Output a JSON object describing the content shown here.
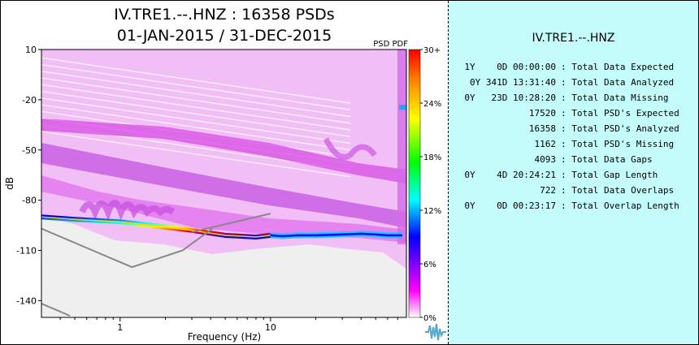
{
  "header": {
    "title_line1": "IV.TRE1.--.HNZ : 16358 PSDs",
    "title_line2": "01-JAN-2015 / 31-DEC-2015"
  },
  "chart_data": {
    "type": "heatmap",
    "title": "IV.TRE1.--.HNZ : 16358 PSDs",
    "subtitle": "01-JAN-2015 / 31-DEC-2015",
    "plot_label": "PSD PDF",
    "xlabel": "Frequency (Hz)",
    "ylabel": "dB",
    "x_scale": "log",
    "xlim": [
      0.3,
      80
    ],
    "ylim": [
      -150,
      10
    ],
    "x_ticks": [
      1,
      10
    ],
    "x_tick_labels": [
      "1",
      "10"
    ],
    "y_ticks": [
      10,
      -20,
      -50,
      -80,
      -110,
      -140
    ],
    "y_tick_labels": [
      "10",
      "-20",
      "-50",
      "-80",
      "-110",
      "-140"
    ],
    "colorbar": {
      "ticks": [
        "30+",
        "24%",
        "18%",
        "12%",
        "6%",
        "0%"
      ],
      "colors": [
        "#ff0000",
        "#ff8800",
        "#ffff00",
        "#00ff00",
        "#00ffff",
        "#0000ff",
        "#8000ff",
        "#ff00ff",
        "#ffffff"
      ]
    },
    "series": [
      {
        "role": "dominant_mode",
        "x": [
          0.3,
          0.5,
          1,
          2,
          3,
          5,
          8,
          10,
          12,
          15,
          20,
          30,
          40,
          50,
          60,
          70,
          75
        ],
        "y": [
          -90,
          -91.5,
          -93,
          -96,
          -98,
          -101,
          -102,
          -101,
          -101.5,
          -101,
          -101,
          -100.5,
          -100,
          -100.5,
          -101,
          -101,
          -101
        ]
      },
      {
        "role": "reference_curve_low",
        "x": [
          0.3,
          1.2,
          2.6,
          4.1
        ],
        "y": [
          -97,
          -120,
          -110,
          -97
        ]
      },
      {
        "role": "reference_curve_high",
        "x": [
          3,
          10
        ],
        "y": [
          -99,
          -88
        ]
      }
    ],
    "grid": false,
    "legend": "colorbar-right"
  },
  "stats": {
    "station": "IV.TRE1.--.HNZ",
    "rows": [
      {
        "value": "1Y    0D 00:00:00",
        "label": ": Total Data Expected"
      },
      {
        "value": "0Y 341D 13:31:40",
        "label": ": Total Data Analyzed"
      },
      {
        "value": "0Y   23D 10:28:20",
        "label": ": Total Data Missing"
      },
      {
        "value": "17520",
        "label": ": Total PSD's Expected"
      },
      {
        "value": "16358",
        "label": ": Total PSD's Analyzed"
      },
      {
        "value": "1162",
        "label": ": Total PSD's Missing"
      },
      {
        "value": "4093",
        "label": ": Total Data Gaps"
      },
      {
        "value": "0Y    4D 20:24:21",
        "label": ": Total Gap Length"
      },
      {
        "value": "722",
        "label": ": Total Data Overlaps"
      },
      {
        "value": "0Y    0D 00:23:17",
        "label": ": Total Overlap Length"
      }
    ]
  }
}
